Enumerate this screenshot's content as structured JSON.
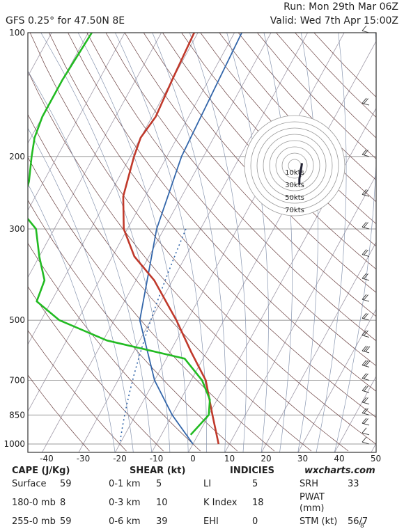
{
  "header": {
    "title": "GFS 0.25° for 47.50N 8E",
    "run": "Run: Mon 29th Mar 06Z",
    "valid": "Valid: Wed 7th Apr 15:00Z"
  },
  "chart_data": {
    "type": "line",
    "title": "GFS 0.25° for 47.50N 8E",
    "x_ticks": [
      "-40",
      "-30",
      "-20",
      "-10",
      "0",
      "10",
      "20",
      "30",
      "40",
      "50"
    ],
    "y_ticks": [
      "100",
      "200",
      "300",
      "500",
      "700",
      "850",
      "1000"
    ],
    "xlim": [
      -45,
      50
    ],
    "ylim": [
      1000,
      100
    ],
    "y_scale": "log",
    "colors": {
      "temperature": "#c0392b",
      "dewpoint": "#22bb22",
      "isotherm": "#a09aa8",
      "dry_adiabat": "#6a4040",
      "moist_adiabat": "#8896b0",
      "mixing_ratio": "#3366aa",
      "parcel": "#3366aa",
      "grid": "#777777"
    },
    "series": [
      {
        "key": "temperature",
        "values": [
          {
            "p": 100,
            "t": -61
          },
          {
            "p": 130,
            "t": -60
          },
          {
            "p": 160,
            "t": -59
          },
          {
            "p": 180,
            "t": -60
          },
          {
            "p": 200,
            "t": -59
          },
          {
            "p": 250,
            "t": -56
          },
          {
            "p": 300,
            "t": -51
          },
          {
            "p": 350,
            "t": -44
          },
          {
            "p": 400,
            "t": -35
          },
          {
            "p": 500,
            "t": -23
          },
          {
            "p": 600,
            "t": -14
          },
          {
            "p": 700,
            "t": -6
          },
          {
            "p": 850,
            "t": 1
          },
          {
            "p": 1000,
            "t": 7
          }
        ]
      },
      {
        "key": "dewpoint",
        "values": [
          {
            "p": 100,
            "t": -89
          },
          {
            "p": 130,
            "t": -90
          },
          {
            "p": 160,
            "t": -90
          },
          {
            "p": 180,
            "t": -89
          },
          {
            "p": 200,
            "t": -87
          },
          {
            "p": 230,
            "t": -84
          },
          {
            "p": 270,
            "t": -82
          },
          {
            "p": 300,
            "t": -75
          },
          {
            "p": 350,
            "t": -70
          },
          {
            "p": 400,
            "t": -65
          },
          {
            "p": 450,
            "t": -64
          },
          {
            "p": 500,
            "t": -55
          },
          {
            "p": 560,
            "t": -39
          },
          {
            "p": 620,
            "t": -15
          },
          {
            "p": 700,
            "t": -7
          },
          {
            "p": 780,
            "t": -2
          },
          {
            "p": 850,
            "t": 0
          },
          {
            "p": 950,
            "t": -2
          }
        ]
      }
    ],
    "parcel": [
      {
        "p": 1000,
        "t": 0
      },
      {
        "p": 850,
        "t": -10
      },
      {
        "p": 700,
        "t": -20
      },
      {
        "p": 500,
        "t": -33
      },
      {
        "p": 300,
        "t": -42
      },
      {
        "p": 200,
        "t": -46
      },
      {
        "p": 100,
        "t": -48
      }
    ],
    "hodograph": {
      "rings_label": [
        "10kts",
        "30kts",
        "50kts",
        "70kts"
      ],
      "trace": [
        {
          "u": 1,
          "v": -8
        },
        {
          "u": 1,
          "v": -4
        },
        {
          "u": 2,
          "v": 2
        },
        {
          "u": 3,
          "v": 8
        }
      ]
    },
    "wind_barbs_kt": [
      {
        "p": 1000,
        "spd": 8,
        "dir": 20
      },
      {
        "p": 950,
        "spd": 12,
        "dir": 30
      },
      {
        "p": 900,
        "spd": 15,
        "dir": 40
      },
      {
        "p": 850,
        "spd": 18,
        "dir": 40
      },
      {
        "p": 800,
        "spd": 20,
        "dir": 40
      },
      {
        "p": 750,
        "spd": 20,
        "dir": 30
      },
      {
        "p": 700,
        "spd": 22,
        "dir": 30
      },
      {
        "p": 650,
        "spd": 25,
        "dir": 20
      },
      {
        "p": 600,
        "spd": 25,
        "dir": 10
      },
      {
        "p": 550,
        "spd": 22,
        "dir": 360
      },
      {
        "p": 500,
        "spd": 20,
        "dir": 350
      },
      {
        "p": 450,
        "spd": 18,
        "dir": 340
      },
      {
        "p": 400,
        "spd": 18,
        "dir": 340
      },
      {
        "p": 350,
        "spd": 20,
        "dir": 340
      },
      {
        "p": 300,
        "spd": 22,
        "dir": 330
      },
      {
        "p": 250,
        "spd": 20,
        "dir": 330
      },
      {
        "p": 200,
        "spd": 18,
        "dir": 330
      },
      {
        "p": 150,
        "spd": 15,
        "dir": 320
      },
      {
        "p": 100,
        "spd": 12,
        "dir": 320
      }
    ]
  },
  "table": {
    "brand": "wxcharts.com",
    "col1_header": "CAPE (J/Kg)",
    "col2_header": "SHEAR (kt)",
    "col3_header": "INDICIES",
    "rows": [
      {
        "label": "Surface",
        "cape": "59",
        "shear_label": "0-1 km",
        "shear": "5",
        "idx_label": "LI",
        "idx": "5",
        "r_label": "SRH",
        "r_val": "33"
      },
      {
        "label": "180-0 mb",
        "cape": "8",
        "shear_label": "0-3 km",
        "shear": "10",
        "idx_label": "K Index",
        "idx": "18",
        "r_label": "PWAT (mm)",
        "r_val": "8"
      },
      {
        "label": "255-0 mb",
        "cape": "59",
        "shear_label": "0-6 km",
        "shear": "39",
        "idx_label": "EHI",
        "idx": "0",
        "r_label": "STM (kt)",
        "r_val": "56/7"
      }
    ]
  }
}
